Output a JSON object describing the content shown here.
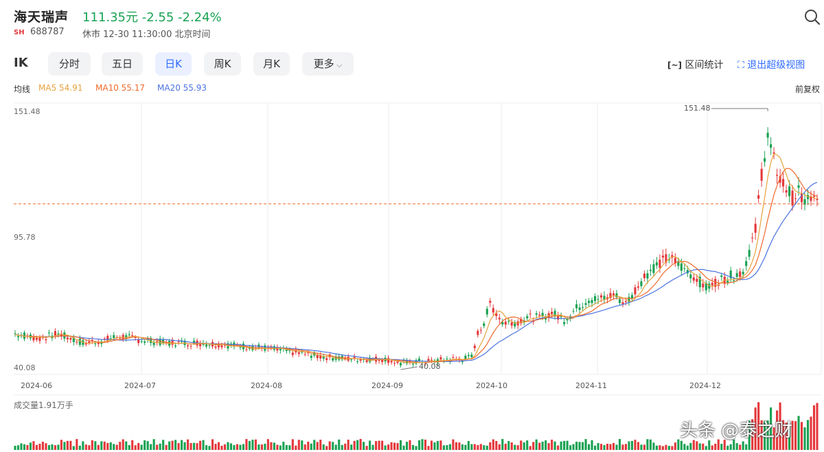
{
  "header": {
    "stock_name": "海天瑞声",
    "price_line": "111.35元 -2.55 -2.24%",
    "market": "SH",
    "code": "688787",
    "status": "休市 12-30 11:30:00 北京时间"
  },
  "toolbar": {
    "kline_icon": "IK",
    "tabs": [
      {
        "label": "分时"
      },
      {
        "label": "五日"
      },
      {
        "label": "日K"
      },
      {
        "label": "周K"
      },
      {
        "label": "月K"
      },
      {
        "label": "更多"
      }
    ],
    "active_tab": "日K",
    "interval_stats": "区间统计",
    "exit_view": "退出超级视图"
  },
  "ma_legend": {
    "label": "均线",
    "ma5": "MA5 54.91",
    "ma10": "MA10 55.17",
    "ma20": "MA20 55.93"
  },
  "adjust_label": "前复权",
  "colors": {
    "up": "#e4393c",
    "down": "#1aa253",
    "ma5": "#e6a23c",
    "ma10": "#ef6a2b",
    "ma20": "#4a72e0",
    "current_price_line": "#ef6a2b"
  },
  "chart_data": {
    "type": "candlestick",
    "y_axis_labels": [
      "151.48",
      "95.78",
      "40.08"
    ],
    "ylim": [
      40.08,
      151.48
    ],
    "x_tick_labels": [
      "2024-06",
      "2024-07",
      "2024-08",
      "2024-09",
      "2024-10",
      "2024-11",
      "2024-12"
    ],
    "high_marker": "151.48",
    "low_marker": "40.08",
    "current_price": 111.35,
    "volume_label": "成交量1.91万手"
  },
  "watermark": "头条 @泰之财"
}
